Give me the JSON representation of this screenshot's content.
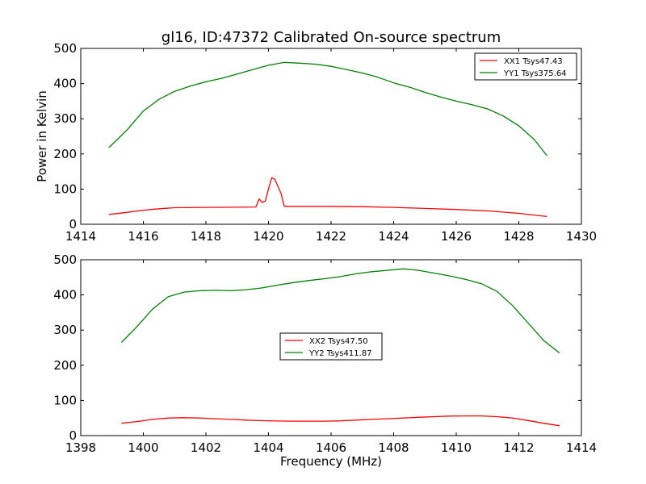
{
  "figure": {
    "title": "gl16, ID:47372 Calibrated On-source spectrum",
    "colors": {
      "red": "#ff0000",
      "green": "#008000"
    }
  },
  "chart_data": [
    {
      "type": "line",
      "title": "gl16, ID:47372 Calibrated On-source spectrum",
      "xlabel": "",
      "ylabel": "Power in Kelvin",
      "xlim": [
        1414,
        1430
      ],
      "ylim": [
        0,
        500
      ],
      "xticks": [
        "1414",
        "1416",
        "1418",
        "1420",
        "1422",
        "1424",
        "1426",
        "1428",
        "1430"
      ],
      "yticks": [
        "0",
        "100",
        "200",
        "300",
        "400",
        "500"
      ],
      "grid": false,
      "legend_position": "top-right",
      "series": [
        {
          "name": "XX1 Tsys47.43",
          "color": "#ff0000",
          "x": [
            1414.9,
            1415.5,
            1416.0,
            1416.5,
            1417.0,
            1418.0,
            1419.0,
            1419.6,
            1419.7,
            1419.8,
            1419.9,
            1420.0,
            1420.1,
            1420.2,
            1420.3,
            1420.4,
            1420.5,
            1420.6,
            1421.0,
            1422.0,
            1423.0,
            1424.0,
            1425.0,
            1426.0,
            1427.0,
            1428.0,
            1428.9
          ],
          "y": [
            28,
            34,
            40,
            44,
            47,
            48,
            48.5,
            49,
            72,
            62,
            66,
            100,
            132,
            128,
            108,
            88,
            52,
            51,
            51,
            51,
            50,
            48,
            45,
            42,
            38,
            31,
            22
          ]
        },
        {
          "name": "YY1 Tsys375.64",
          "color": "#008000",
          "x": [
            1414.9,
            1415.5,
            1416.0,
            1416.5,
            1417.0,
            1417.5,
            1418.0,
            1418.5,
            1419.0,
            1419.5,
            1420.0,
            1420.5,
            1421.0,
            1421.5,
            1422.0,
            1422.5,
            1423.0,
            1423.5,
            1424.0,
            1424.5,
            1425.0,
            1425.5,
            1426.0,
            1426.5,
            1427.0,
            1427.5,
            1428.0,
            1428.5,
            1428.9
          ],
          "y": [
            218,
            270,
            322,
            355,
            378,
            393,
            405,
            415,
            427,
            440,
            452,
            460,
            458,
            455,
            449,
            440,
            430,
            418,
            402,
            390,
            375,
            362,
            350,
            340,
            328,
            308,
            280,
            240,
            195
          ]
        }
      ]
    },
    {
      "type": "line",
      "title": "",
      "xlabel": "Frequency (MHz)",
      "ylabel": "",
      "xlim": [
        1398,
        1414
      ],
      "ylim": [
        0,
        500
      ],
      "xticks": [
        "1398",
        "1400",
        "1402",
        "1404",
        "1406",
        "1408",
        "1410",
        "1412",
        "1414"
      ],
      "yticks": [
        "0",
        "100",
        "200",
        "300",
        "400",
        "500"
      ],
      "grid": false,
      "legend_position": "center",
      "series": [
        {
          "name": "XX2 Tsys47.50",
          "color": "#ff0000",
          "x": [
            1399.3,
            1399.8,
            1400.3,
            1400.8,
            1401.3,
            1401.8,
            1402.3,
            1402.8,
            1403.3,
            1403.8,
            1404.3,
            1404.8,
            1405.3,
            1405.8,
            1406.3,
            1406.8,
            1407.3,
            1407.8,
            1408.3,
            1408.8,
            1409.3,
            1409.8,
            1410.3,
            1410.8,
            1411.3,
            1411.8,
            1412.3,
            1412.8,
            1413.3
          ],
          "y": [
            35,
            40,
            46,
            50,
            51,
            50,
            48,
            46,
            44,
            42.5,
            41.5,
            41,
            41,
            41,
            42,
            44,
            46,
            48,
            50,
            52,
            54,
            55.5,
            56,
            56,
            54,
            50,
            43,
            35,
            28
          ]
        },
        {
          "name": "YY2 Tsys411.87",
          "color": "#008000",
          "x": [
            1399.3,
            1399.8,
            1400.3,
            1400.8,
            1401.3,
            1401.8,
            1402.3,
            1402.8,
            1403.3,
            1403.8,
            1404.3,
            1404.8,
            1405.3,
            1405.8,
            1406.3,
            1406.8,
            1407.3,
            1407.8,
            1408.3,
            1408.8,
            1409.3,
            1409.8,
            1410.3,
            1410.8,
            1411.3,
            1411.8,
            1412.3,
            1412.8,
            1413.3
          ],
          "y": [
            265,
            310,
            360,
            395,
            408,
            412,
            413,
            412,
            415,
            420,
            428,
            435,
            441,
            446,
            452,
            460,
            466,
            470,
            474,
            470,
            462,
            454,
            444,
            432,
            410,
            370,
            320,
            270,
            235
          ]
        }
      ]
    }
  ]
}
